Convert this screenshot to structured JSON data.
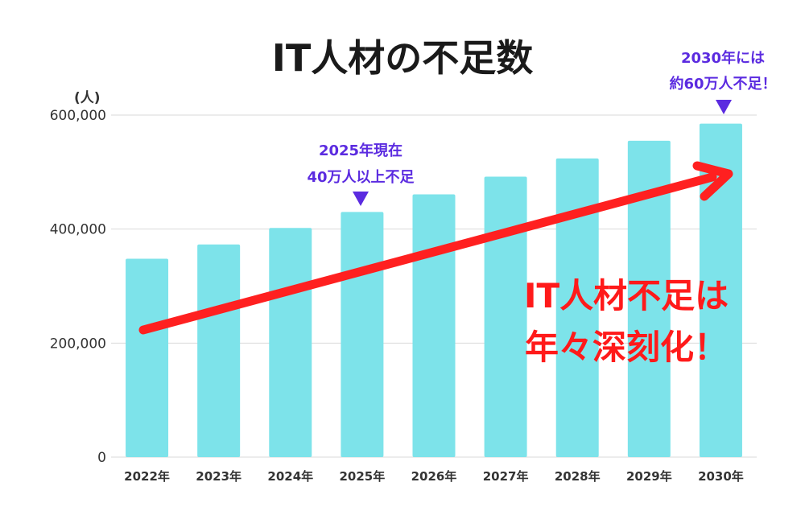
{
  "chart_data": {
    "type": "bar",
    "title": "IT人材の不足数",
    "ylabel": "(人)",
    "xlabel": "",
    "ylim": [
      0,
      600000
    ],
    "yticks": [
      0,
      200000,
      400000,
      600000
    ],
    "ytick_labels": [
      "0",
      "200,000",
      "400,000",
      "600,000"
    ],
    "categories": [
      "2022年",
      "2023年",
      "2024年",
      "2025年",
      "2026年",
      "2027年",
      "2028年",
      "2029年",
      "2030年"
    ],
    "values": [
      348000,
      373000,
      402000,
      430000,
      461000,
      492000,
      524000,
      555000,
      585000
    ],
    "bar_color": "#7de3ea",
    "arrow_color": "#ff2020",
    "annotations": [
      {
        "lines": [
          "2025年現在",
          "40万人以上不足"
        ],
        "target": "2025年",
        "color": "#5b2be0"
      },
      {
        "lines": [
          "2030年には",
          "約60万人不足！"
        ],
        "target": "2030年",
        "color": "#5b2be0"
      }
    ],
    "headline": {
      "lines": [
        "IT人材不足は",
        "年々深刻化！"
      ],
      "color": "#ff1a1a"
    }
  }
}
